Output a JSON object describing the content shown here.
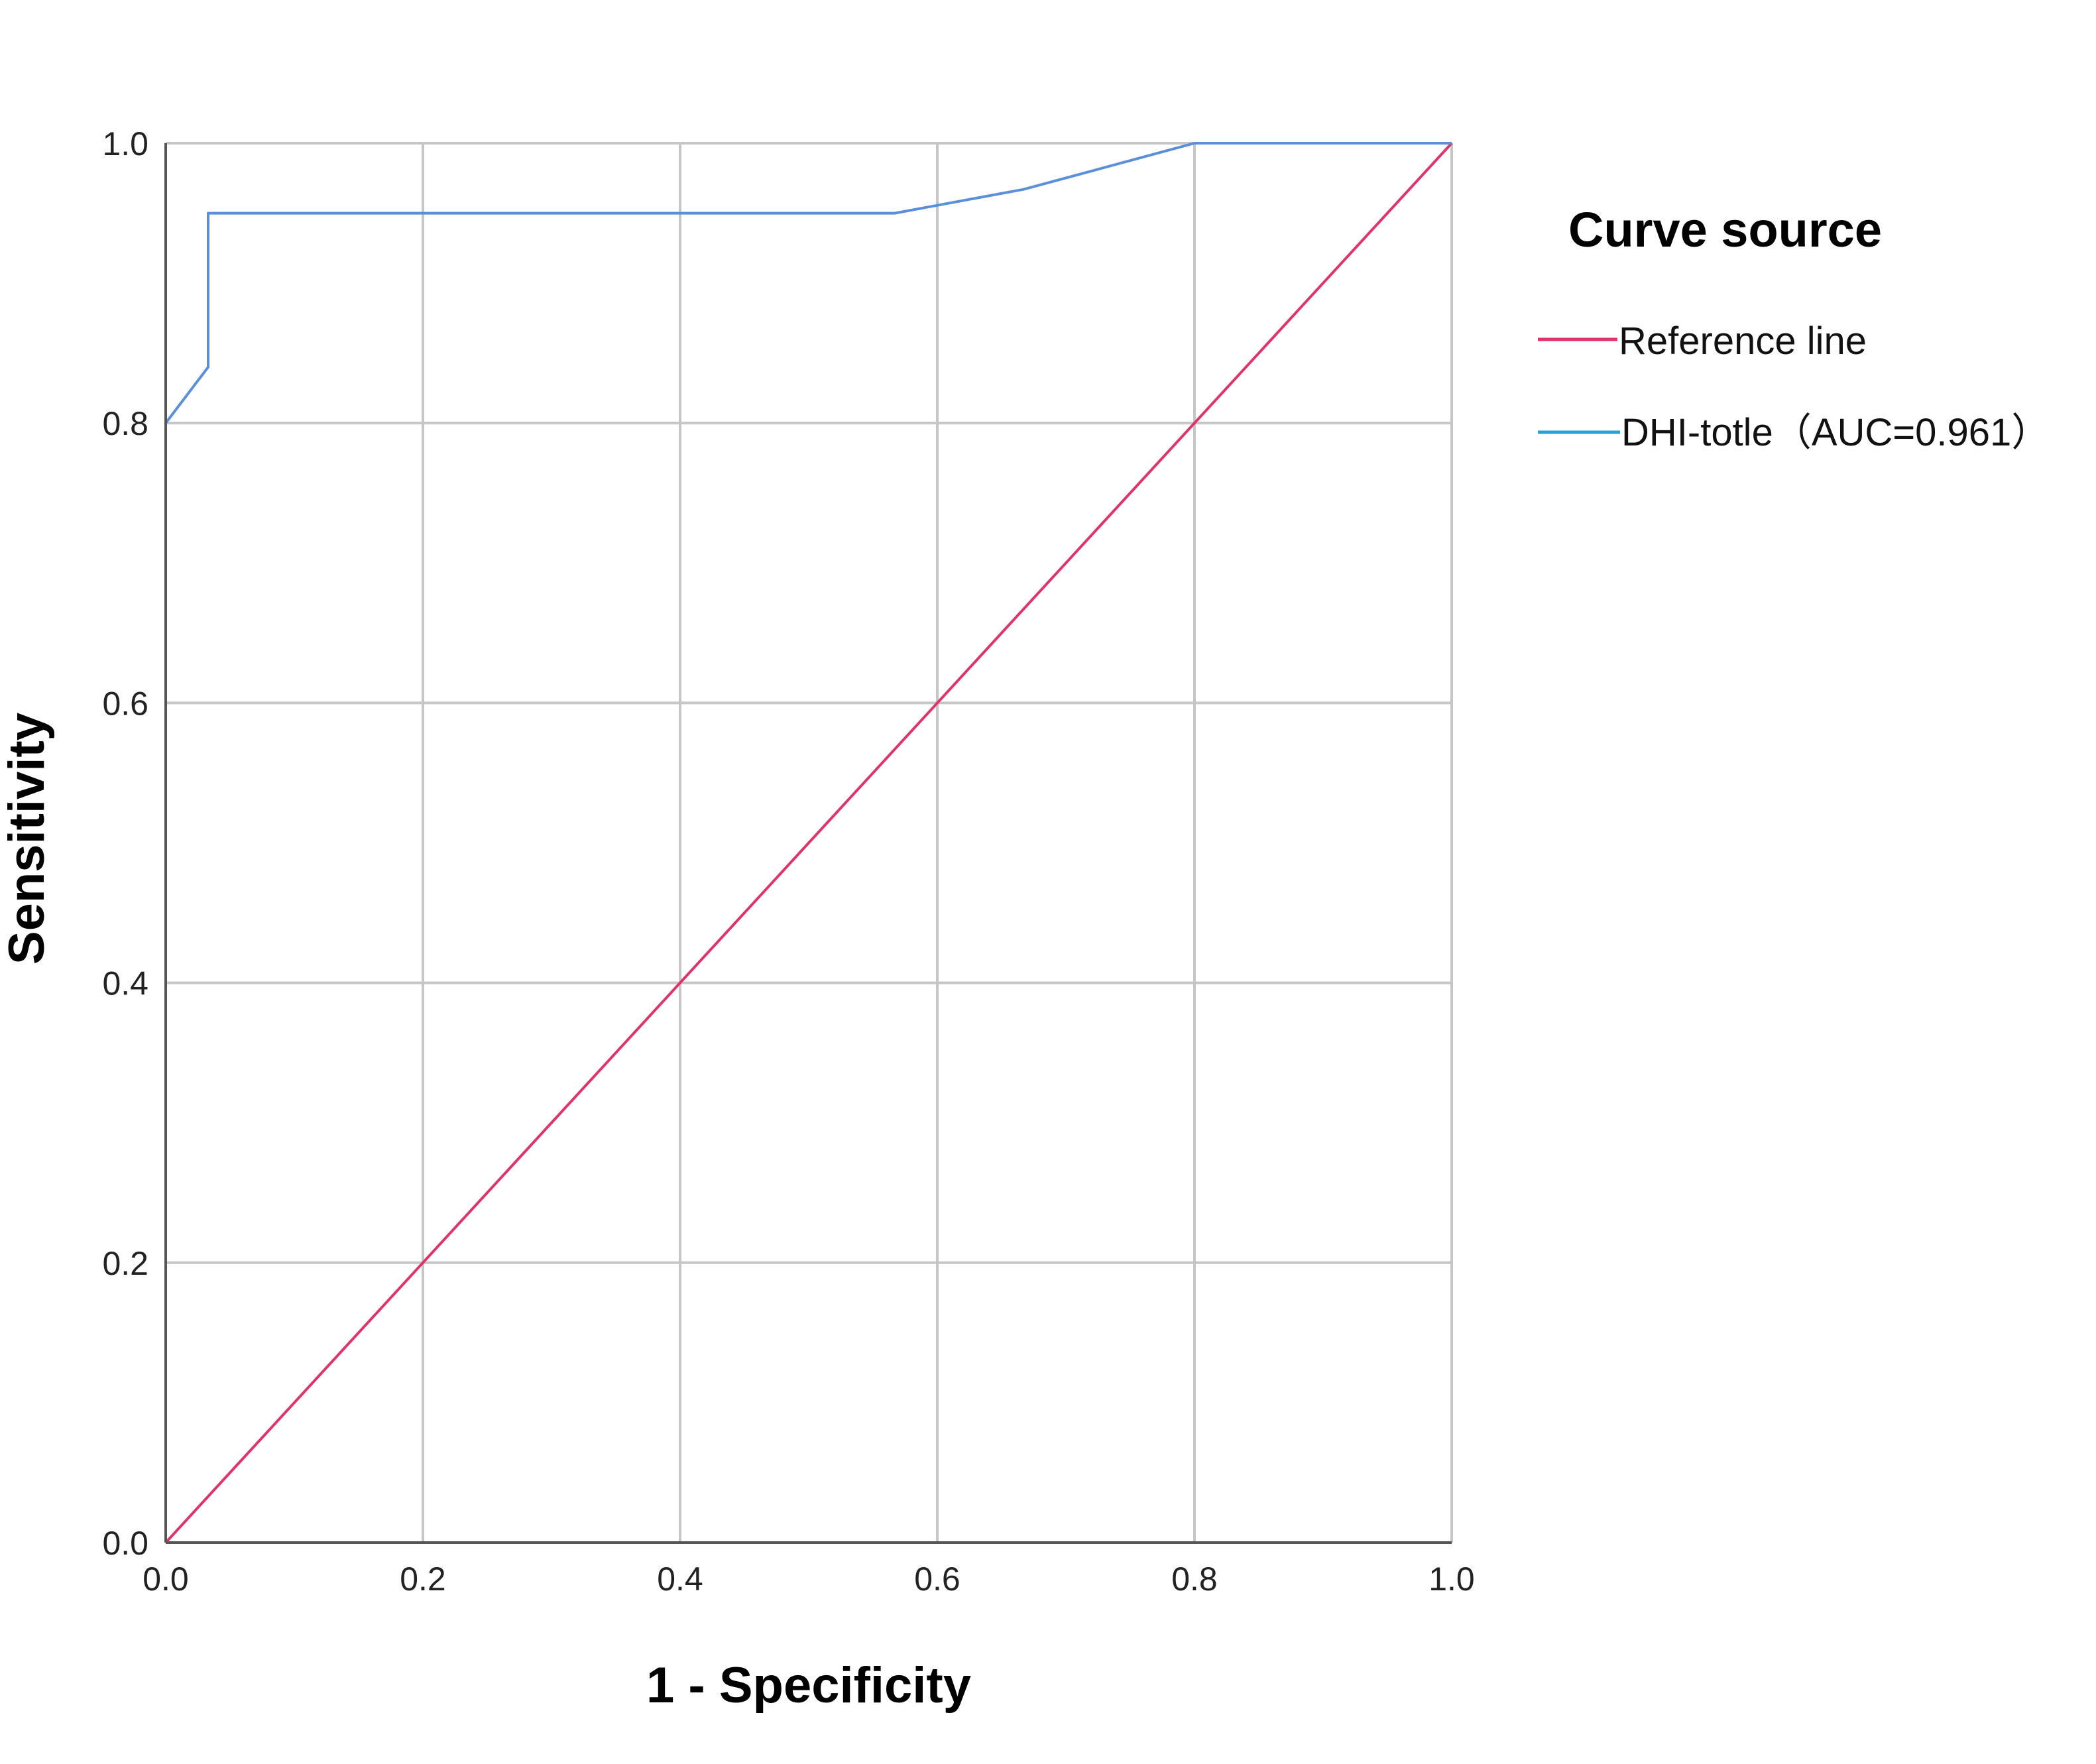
{
  "chart_data": {
    "type": "line",
    "xlabel": "1 - Specificity",
    "ylabel": "Sensitivity",
    "xlim": [
      0,
      1
    ],
    "ylim": [
      0,
      1
    ],
    "x_ticks": [
      "0.0",
      "0.2",
      "0.4",
      "0.6",
      "0.8",
      "1.0"
    ],
    "y_ticks": [
      "0.0",
      "0.2",
      "0.4",
      "0.6",
      "0.8",
      "1.0"
    ],
    "grid": true,
    "legend": {
      "title": "Curve source",
      "position": "right"
    },
    "series": [
      {
        "name": "Reference line",
        "color": "#e0336a",
        "points": [
          [
            0,
            0
          ],
          [
            1,
            1
          ]
        ]
      },
      {
        "name": "DHI-totle（AUC=0.961）",
        "color": "#5b8fd9",
        "points": [
          [
            0,
            0
          ],
          [
            0,
            0.8
          ],
          [
            0.033,
            0.84
          ],
          [
            0.033,
            0.95
          ],
          [
            0.567,
            0.95
          ],
          [
            0.667,
            0.967
          ],
          [
            0.8,
            1.0
          ],
          [
            1.0,
            1.0
          ]
        ]
      }
    ]
  }
}
